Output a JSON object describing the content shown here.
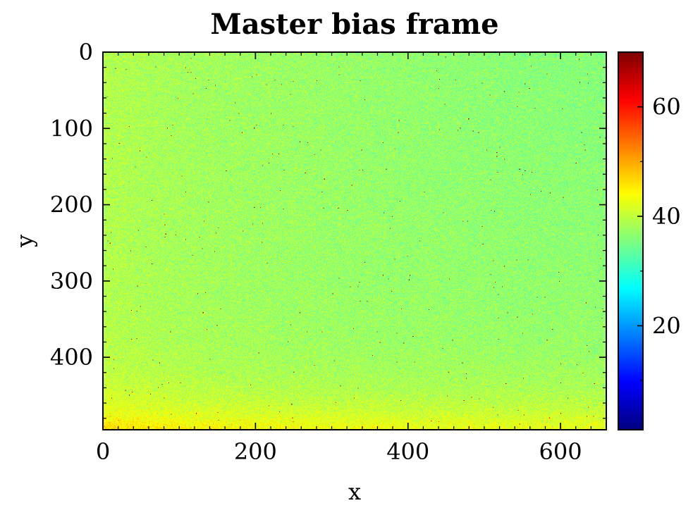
{
  "chart_data": {
    "type": "heatmap",
    "title": "Master bias frame",
    "xlabel": "x",
    "ylabel": "y",
    "xlim": [
      0,
      660
    ],
    "ylim": [
      495,
      0
    ],
    "y_inverted": true,
    "grid": false,
    "colormap": "jet",
    "colorbar_range": [
      1,
      70
    ],
    "colorbar_ticks": [
      20,
      40,
      60
    ],
    "x_ticks": [
      0,
      200,
      400,
      600
    ],
    "y_ticks": [
      0,
      100,
      200,
      300,
      400
    ],
    "image_shape": {
      "width": 660,
      "height": 495
    },
    "approx_values": {
      "typical": 37,
      "upper_right_region": 35,
      "left_edge": 39,
      "bottom_edge": 43,
      "bottom_left_corner": 45,
      "hot_pixel_values": [
        65,
        70
      ]
    }
  }
}
